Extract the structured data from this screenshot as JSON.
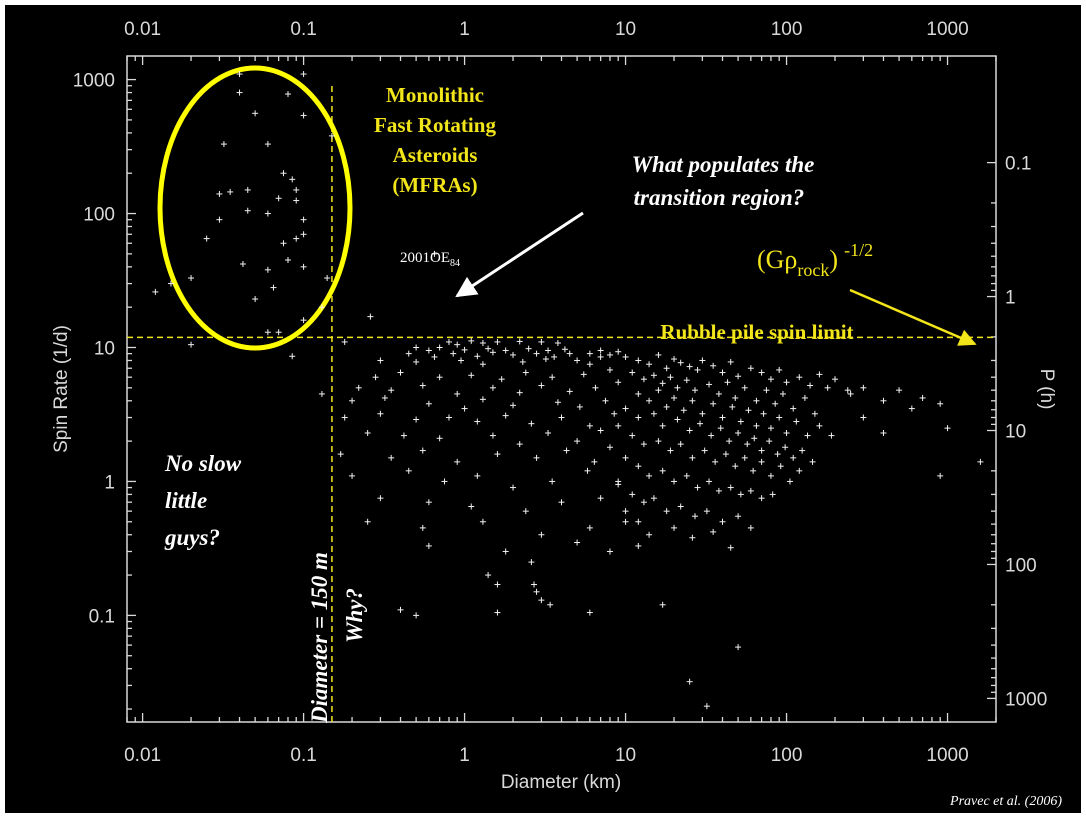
{
  "chart_data": {
    "type": "scatter",
    "title": "",
    "xlabel": "Diameter (km)",
    "ylabel": "Spin Rate (1/d)",
    "y2label": "P (h)",
    "x_scale": "log",
    "y_scale": "log",
    "xlim": [
      0.008,
      2000
    ],
    "ylim": [
      0.016,
      1500
    ],
    "x_tick_labels": [
      "0.01",
      "0.1",
      "1",
      "10",
      "100",
      "1000"
    ],
    "y_tick_labels": [
      "0.1",
      "1",
      "10",
      "100",
      "1000"
    ],
    "y2_tick_labels": [
      "0.1",
      "1",
      "10",
      "100",
      "1000"
    ],
    "grid": false,
    "legend": "none",
    "colors": {
      "background": "#000000",
      "points": "#f2f2f2",
      "annotation": "#f2e51a",
      "axis_text": "#d9d9d9",
      "arrow": "#ffffff"
    },
    "reference_lines": {
      "rubble_pile_spin_limit_rate": 11.9,
      "diameter_150m_km": 0.15
    },
    "annotations": {
      "mfra_line1": "Monolithic",
      "mfra_line2": "Fast Rotating",
      "mfra_line3": "Asteroids",
      "mfra_line4": "(MFRAs)",
      "question_line1": "What populates the",
      "question_line2": "transition region?",
      "density_base": "(Gρ",
      "density_sub": "rock",
      "density_close": ")",
      "density_exp": "-1/2",
      "rubble_label": "Rubble pile spin limit",
      "object_name": "2001OE",
      "object_sub": "84",
      "diameter_label": "Diameter = 150 m",
      "why_label": "Why?",
      "slow_line1": "No slow",
      "slow_line2": "little",
      "slow_line3": "guys?",
      "credit": "Pravec et al. (2006)"
    },
    "points": [
      [
        0.04,
        1100
      ],
      [
        0.1,
        1100
      ],
      [
        0.04,
        800
      ],
      [
        0.08,
        780
      ],
      [
        0.05,
        560
      ],
      [
        0.1,
        540
      ],
      [
        0.032,
        330
      ],
      [
        0.06,
        330
      ],
      [
        0.15,
        380
      ],
      [
        0.075,
        200
      ],
      [
        0.085,
        180
      ],
      [
        0.09,
        150
      ],
      [
        0.03,
        140
      ],
      [
        0.035,
        145
      ],
      [
        0.045,
        150
      ],
      [
        0.07,
        130
      ],
      [
        0.09,
        125
      ],
      [
        0.045,
        105
      ],
      [
        0.06,
        100
      ],
      [
        0.1,
        90
      ],
      [
        0.03,
        90
      ],
      [
        0.025,
        65
      ],
      [
        0.075,
        60
      ],
      [
        0.09,
        65
      ],
      [
        0.1,
        70
      ],
      [
        0.042,
        42
      ],
      [
        0.08,
        45
      ],
      [
        0.06,
        38
      ],
      [
        0.1,
        40
      ],
      [
        0.015,
        30
      ],
      [
        0.065,
        28
      ],
      [
        0.14,
        33
      ],
      [
        0.02,
        33
      ],
      [
        0.05,
        23
      ],
      [
        0.012,
        26
      ],
      [
        0.13,
        20
      ],
      [
        0.1,
        16
      ],
      [
        0.06,
        13
      ],
      [
        0.07,
        13
      ],
      [
        0.02,
        10.5
      ],
      [
        0.085,
        8.6
      ],
      [
        0.26,
        17
      ],
      [
        0.65,
        50
      ],
      [
        0.18,
        11
      ],
      [
        0.13,
        4.5
      ],
      [
        0.8,
        11
      ],
      [
        0.9,
        10.5
      ],
      [
        1.1,
        11.2
      ],
      [
        1.3,
        10.8
      ],
      [
        1.6,
        11
      ],
      [
        2.2,
        11.1
      ],
      [
        3,
        11
      ],
      [
        3.8,
        10.8
      ],
      [
        0.5,
        10
      ],
      [
        0.6,
        9.5
      ],
      [
        0.7,
        10
      ],
      [
        1,
        9.6
      ],
      [
        1.4,
        9.8
      ],
      [
        1.8,
        9.5
      ],
      [
        2.5,
        9.8
      ],
      [
        3.3,
        9.5
      ],
      [
        4.2,
        9.7
      ],
      [
        0.45,
        9
      ],
      [
        0.65,
        8.5
      ],
      [
        0.85,
        9
      ],
      [
        1.2,
        8.6
      ],
      [
        1.5,
        9.2
      ],
      [
        2,
        8.8
      ],
      [
        2.8,
        9
      ],
      [
        3.6,
        8.5
      ],
      [
        4.5,
        9
      ],
      [
        0.3,
        8
      ],
      [
        0.5,
        7.8
      ],
      [
        0.95,
        8
      ],
      [
        1.3,
        7.5
      ],
      [
        2.3,
        7.8
      ],
      [
        3.2,
        8.2
      ],
      [
        5,
        8
      ],
      [
        6,
        7.5
      ],
      [
        7,
        8.5
      ],
      [
        0.28,
        6
      ],
      [
        0.4,
        6.5
      ],
      [
        0.7,
        6
      ],
      [
        1.1,
        6.2
      ],
      [
        1.7,
        5.8
      ],
      [
        2.4,
        6.5
      ],
      [
        3.5,
        6
      ],
      [
        5.5,
        6.3
      ],
      [
        8,
        6.8
      ],
      [
        0.22,
        5
      ],
      [
        0.35,
        4.8
      ],
      [
        0.55,
        5.2
      ],
      [
        0.9,
        4.5
      ],
      [
        1.5,
        5
      ],
      [
        2.2,
        4.6
      ],
      [
        3,
        5.2
      ],
      [
        4.5,
        4.7
      ],
      [
        6.5,
        5
      ],
      [
        9,
        5.5
      ],
      [
        0.2,
        4
      ],
      [
        0.32,
        4.2
      ],
      [
        0.6,
        3.8
      ],
      [
        1,
        3.5
      ],
      [
        1.3,
        4.1
      ],
      [
        2,
        3.7
      ],
      [
        3.8,
        3.9
      ],
      [
        5.2,
        3.6
      ],
      [
        7.5,
        4
      ],
      [
        0.18,
        3
      ],
      [
        0.3,
        3.2
      ],
      [
        0.5,
        2.9
      ],
      [
        0.8,
        3
      ],
      [
        1.2,
        2.8
      ],
      [
        1.8,
        3.1
      ],
      [
        2.6,
        2.7
      ],
      [
        4,
        3
      ],
      [
        6,
        2.6
      ],
      [
        8.5,
        3.2
      ],
      [
        0.25,
        2.3
      ],
      [
        0.42,
        2.2
      ],
      [
        0.7,
        2.1
      ],
      [
        1.5,
        2.2
      ],
      [
        2.2,
        1.9
      ],
      [
        3.3,
        2.3
      ],
      [
        5,
        2
      ],
      [
        7,
        2.4
      ],
      [
        0.17,
        1.6
      ],
      [
        0.35,
        1.5
      ],
      [
        0.55,
        1.7
      ],
      [
        0.9,
        1.4
      ],
      [
        1.6,
        1.6
      ],
      [
        2.8,
        1.5
      ],
      [
        4.3,
        1.7
      ],
      [
        6.4,
        1.4
      ],
      [
        0.2,
        1.1
      ],
      [
        0.45,
        1.2
      ],
      [
        0.75,
        1
      ],
      [
        1.2,
        1.1
      ],
      [
        2,
        0.9
      ],
      [
        3.5,
        1
      ],
      [
        5.8,
        1.2
      ],
      [
        9,
        0.95
      ],
      [
        0.3,
        0.75
      ],
      [
        0.6,
        0.7
      ],
      [
        1.1,
        0.65
      ],
      [
        2.4,
        0.6
      ],
      [
        4,
        0.7
      ],
      [
        7,
        0.75
      ],
      [
        0.25,
        0.5
      ],
      [
        0.55,
        0.45
      ],
      [
        1.3,
        0.5
      ],
      [
        3,
        0.4
      ],
      [
        6,
        0.45
      ],
      [
        10,
        0.5
      ],
      [
        0.6,
        0.33
      ],
      [
        1.8,
        0.3
      ],
      [
        2.6,
        0.25
      ],
      [
        5,
        0.35
      ],
      [
        8,
        0.3
      ],
      [
        12,
        0.33
      ],
      [
        2.7,
        0.17
      ],
      [
        2.8,
        0.15
      ],
      [
        3,
        0.13
      ],
      [
        1.4,
        0.2
      ],
      [
        1.6,
        0.17
      ],
      [
        3.4,
        0.12
      ],
      [
        17,
        0.12
      ],
      [
        1.6,
        0.105
      ],
      [
        0.4,
        0.11
      ],
      [
        0.5,
        0.1
      ],
      [
        6,
        0.105
      ],
      [
        50,
        0.058
      ],
      [
        25,
        0.032
      ],
      [
        32,
        0.021
      ],
      [
        6,
        9
      ],
      [
        7,
        9.5
      ],
      [
        8,
        8.8
      ],
      [
        9,
        9.3
      ],
      [
        10,
        8.5
      ],
      [
        12,
        8
      ],
      [
        14,
        7.5
      ],
      [
        16,
        8.8
      ],
      [
        18,
        7
      ],
      [
        20,
        8.2
      ],
      [
        22,
        7.7
      ],
      [
        25,
        7.2
      ],
      [
        28,
        6.8
      ],
      [
        30,
        8
      ],
      [
        35,
        7.3
      ],
      [
        40,
        6.5
      ],
      [
        45,
        7.8
      ],
      [
        50,
        6.1
      ],
      [
        60,
        7
      ],
      [
        70,
        6.5
      ],
      [
        80,
        5.8
      ],
      [
        90,
        6.8
      ],
      [
        100,
        5.5
      ],
      [
        120,
        6
      ],
      [
        140,
        5.2
      ],
      [
        160,
        6.3
      ],
      [
        180,
        5
      ],
      [
        200,
        5.8
      ],
      [
        240,
        4.8
      ],
      [
        11,
        6.5
      ],
      [
        13,
        5.8
      ],
      [
        15,
        6.2
      ],
      [
        17,
        5.4
      ],
      [
        19,
        6
      ],
      [
        21,
        5
      ],
      [
        24,
        5.7
      ],
      [
        27,
        4.8
      ],
      [
        33,
        5.3
      ],
      [
        38,
        4.5
      ],
      [
        43,
        5.5
      ],
      [
        48,
        4.2
      ],
      [
        55,
        5
      ],
      [
        65,
        4
      ],
      [
        75,
        4.8
      ],
      [
        85,
        3.8
      ],
      [
        95,
        4.5
      ],
      [
        110,
        3.5
      ],
      [
        130,
        4.2
      ],
      [
        150,
        3.2
      ],
      [
        12,
        4.5
      ],
      [
        14,
        4
      ],
      [
        16,
        4.8
      ],
      [
        18,
        3.6
      ],
      [
        20,
        4.2
      ],
      [
        23,
        3.4
      ],
      [
        26,
        4
      ],
      [
        30,
        3.2
      ],
      [
        35,
        3.8
      ],
      [
        40,
        3
      ],
      [
        46,
        3.6
      ],
      [
        52,
        2.8
      ],
      [
        58,
        3.4
      ],
      [
        65,
        2.6
      ],
      [
        72,
        3.2
      ],
      [
        80,
        2.5
      ],
      [
        90,
        3
      ],
      [
        100,
        2.3
      ],
      [
        115,
        2.8
      ],
      [
        135,
        2.2
      ],
      [
        160,
        2.6
      ],
      [
        190,
        2.2
      ],
      [
        10,
        3.5
      ],
      [
        12,
        3
      ],
      [
        15,
        3.2
      ],
      [
        17,
        2.6
      ],
      [
        21,
        2.9
      ],
      [
        25,
        2.4
      ],
      [
        29,
        2.7
      ],
      [
        34,
        2.2
      ],
      [
        39,
        2.5
      ],
      [
        44,
        2
      ],
      [
        50,
        2.3
      ],
      [
        57,
        1.9
      ],
      [
        63,
        2.1
      ],
      [
        70,
        1.7
      ],
      [
        78,
        2
      ],
      [
        88,
        1.6
      ],
      [
        98,
        1.8
      ],
      [
        110,
        1.5
      ],
      [
        125,
        1.7
      ],
      [
        145,
        1.4
      ],
      [
        9,
        2.6
      ],
      [
        11,
        2.2
      ],
      [
        13,
        1.9
      ],
      [
        16,
        2
      ],
      [
        19,
        1.7
      ],
      [
        22,
        1.9
      ],
      [
        26,
        1.5
      ],
      [
        31,
        1.7
      ],
      [
        36,
        1.4
      ],
      [
        42,
        1.6
      ],
      [
        48,
        1.3
      ],
      [
        55,
        1.5
      ],
      [
        62,
        1.2
      ],
      [
        70,
        1.4
      ],
      [
        80,
        1.1
      ],
      [
        92,
        1.3
      ],
      [
        105,
        1
      ],
      [
        120,
        1.2
      ],
      [
        8,
        1.8
      ],
      [
        10,
        1.5
      ],
      [
        12,
        1.3
      ],
      [
        14,
        1.1
      ],
      [
        17,
        1.2
      ],
      [
        20,
        1
      ],
      [
        24,
        1.1
      ],
      [
        28,
        0.9
      ],
      [
        33,
        1
      ],
      [
        38,
        0.85
      ],
      [
        45,
        0.9
      ],
      [
        52,
        0.8
      ],
      [
        60,
        0.85
      ],
      [
        70,
        0.75
      ],
      [
        82,
        0.8
      ],
      [
        9,
        1
      ],
      [
        11,
        0.8
      ],
      [
        13,
        0.7
      ],
      [
        15,
        0.75
      ],
      [
        18,
        0.6
      ],
      [
        22,
        0.65
      ],
      [
        27,
        0.55
      ],
      [
        32,
        0.6
      ],
      [
        40,
        0.5
      ],
      [
        50,
        0.55
      ],
      [
        60,
        0.45
      ],
      [
        10,
        0.6
      ],
      [
        12,
        0.5
      ],
      [
        14,
        0.4
      ],
      [
        20,
        0.45
      ],
      [
        26,
        0.38
      ],
      [
        35,
        0.42
      ],
      [
        45,
        0.32
      ],
      [
        250,
        4.5
      ],
      [
        300,
        5
      ],
      [
        400,
        4
      ],
      [
        500,
        4.8
      ],
      [
        600,
        3.5
      ],
      [
        700,
        4.2
      ],
      [
        900,
        3.8
      ],
      [
        1000,
        2.5
      ],
      [
        1600,
        1.4
      ],
      [
        900,
        1.1
      ],
      [
        400,
        2.3
      ],
      [
        300,
        3
      ]
    ]
  }
}
